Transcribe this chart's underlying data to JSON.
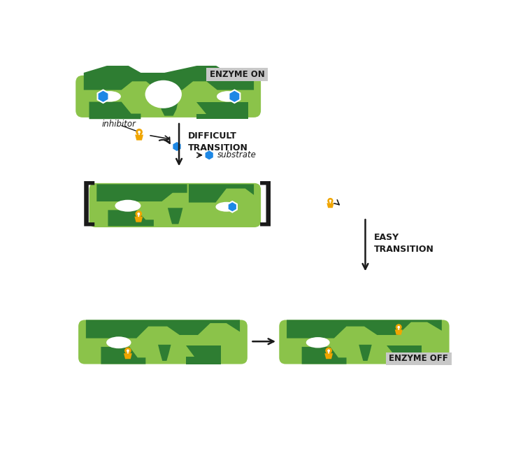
{
  "bg_color": "#ffffff",
  "dark_green": "#2e7d32",
  "light_green": "#8bc34a",
  "blue_hex": "#1e88e5",
  "orange": "#f0a500",
  "text_color": "#1a1a1a",
  "label_bg": "#c8c8c8",
  "enzyme_on_label": "ENZYME ON",
  "enzyme_off_label": "ENZYME OFF",
  "difficult_label": "DIFFICULT\nTRANSITION",
  "easy_label": "EASY\nTRANSITION",
  "inhibitor_label": "inhibitor",
  "substrate_label": "substrate",
  "fig_width": 7.28,
  "fig_height": 6.42,
  "dpi": 100
}
